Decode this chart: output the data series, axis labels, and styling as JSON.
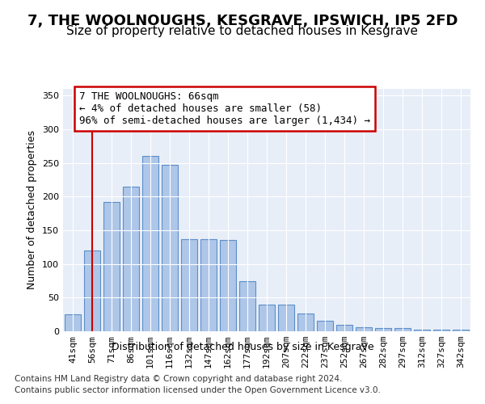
{
  "title": "7, THE WOOLNOUGHS, KESGRAVE, IPSWICH, IP5 2FD",
  "subtitle": "Size of property relative to detached houses in Kesgrave",
  "xlabel": "Distribution of detached houses by size in Kesgrave",
  "ylabel": "Number of detached properties",
  "categories": [
    "41sqm",
    "56sqm",
    "71sqm",
    "86sqm",
    "101sqm",
    "116sqm",
    "132sqm",
    "147sqm",
    "162sqm",
    "177sqm",
    "192sqm",
    "207sqm",
    "222sqm",
    "237sqm",
    "252sqm",
    "267sqm",
    "282sqm",
    "297sqm",
    "312sqm",
    "327sqm",
    "342sqm"
  ],
  "values": [
    25,
    120,
    192,
    215,
    260,
    247,
    137,
    137,
    136,
    75,
    40,
    40,
    26,
    16,
    10,
    6,
    5,
    5,
    3,
    2,
    2
  ],
  "bar_color": "#aec6e8",
  "bar_edge_color": "#5b8fc9",
  "red_line_x": 1.0,
  "annotation_text": "7 THE WOOLNOUGHS: 66sqm\n← 4% of detached houses are smaller (58)\n96% of semi-detached houses are larger (1,434) →",
  "annotation_box_color": "#ffffff",
  "annotation_box_edge": "#cc0000",
  "ylim": [
    0,
    360
  ],
  "yticks": [
    0,
    50,
    100,
    150,
    200,
    250,
    300,
    350
  ],
  "plot_bg_color": "#e8eef8",
  "footer_line1": "Contains HM Land Registry data © Crown copyright and database right 2024.",
  "footer_line2": "Contains public sector information licensed under the Open Government Licence v3.0.",
  "title_fontsize": 13,
  "subtitle_fontsize": 11,
  "axis_label_fontsize": 9,
  "tick_fontsize": 8,
  "footer_fontsize": 7.5,
  "annotation_fontsize": 9,
  "grid_color": "#ffffff",
  "red_line_color": "#cc0000"
}
